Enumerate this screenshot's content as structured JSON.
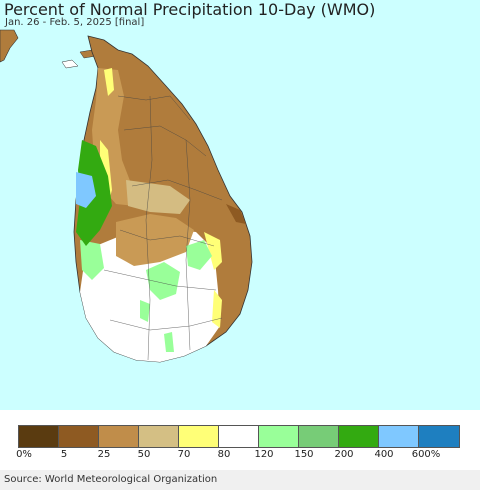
{
  "header": {
    "title": "Percent of Normal Precipitation 10-Day (WMO)",
    "subtitle": "Jan. 26 - Feb. 5, 2025 [final]"
  },
  "map": {
    "background_color": "#ccffff",
    "land_colors": {
      "brown": "#b07c3c",
      "tan": "#c99a55",
      "light_tan": "#d4bc82",
      "yellow": "#ffff77",
      "white": "#ffffff",
      "light_green": "#99ff99",
      "green": "#33aa11",
      "light_blue": "#7fc8ff"
    }
  },
  "legend": {
    "colors": [
      "#5a3b10",
      "#8e5a22",
      "#c08d4a",
      "#d4bf84",
      "#ffff77",
      "#ffffff",
      "#99ff99",
      "#77cc77",
      "#33aa11",
      "#7fc8ff",
      "#1e7fc0"
    ],
    "labels": [
      "0%",
      "5",
      "25",
      "50",
      "70",
      "80",
      "120",
      "150",
      "200",
      "400",
      "600%"
    ]
  },
  "footer": {
    "source": "Source: World Meteorological Organization"
  }
}
